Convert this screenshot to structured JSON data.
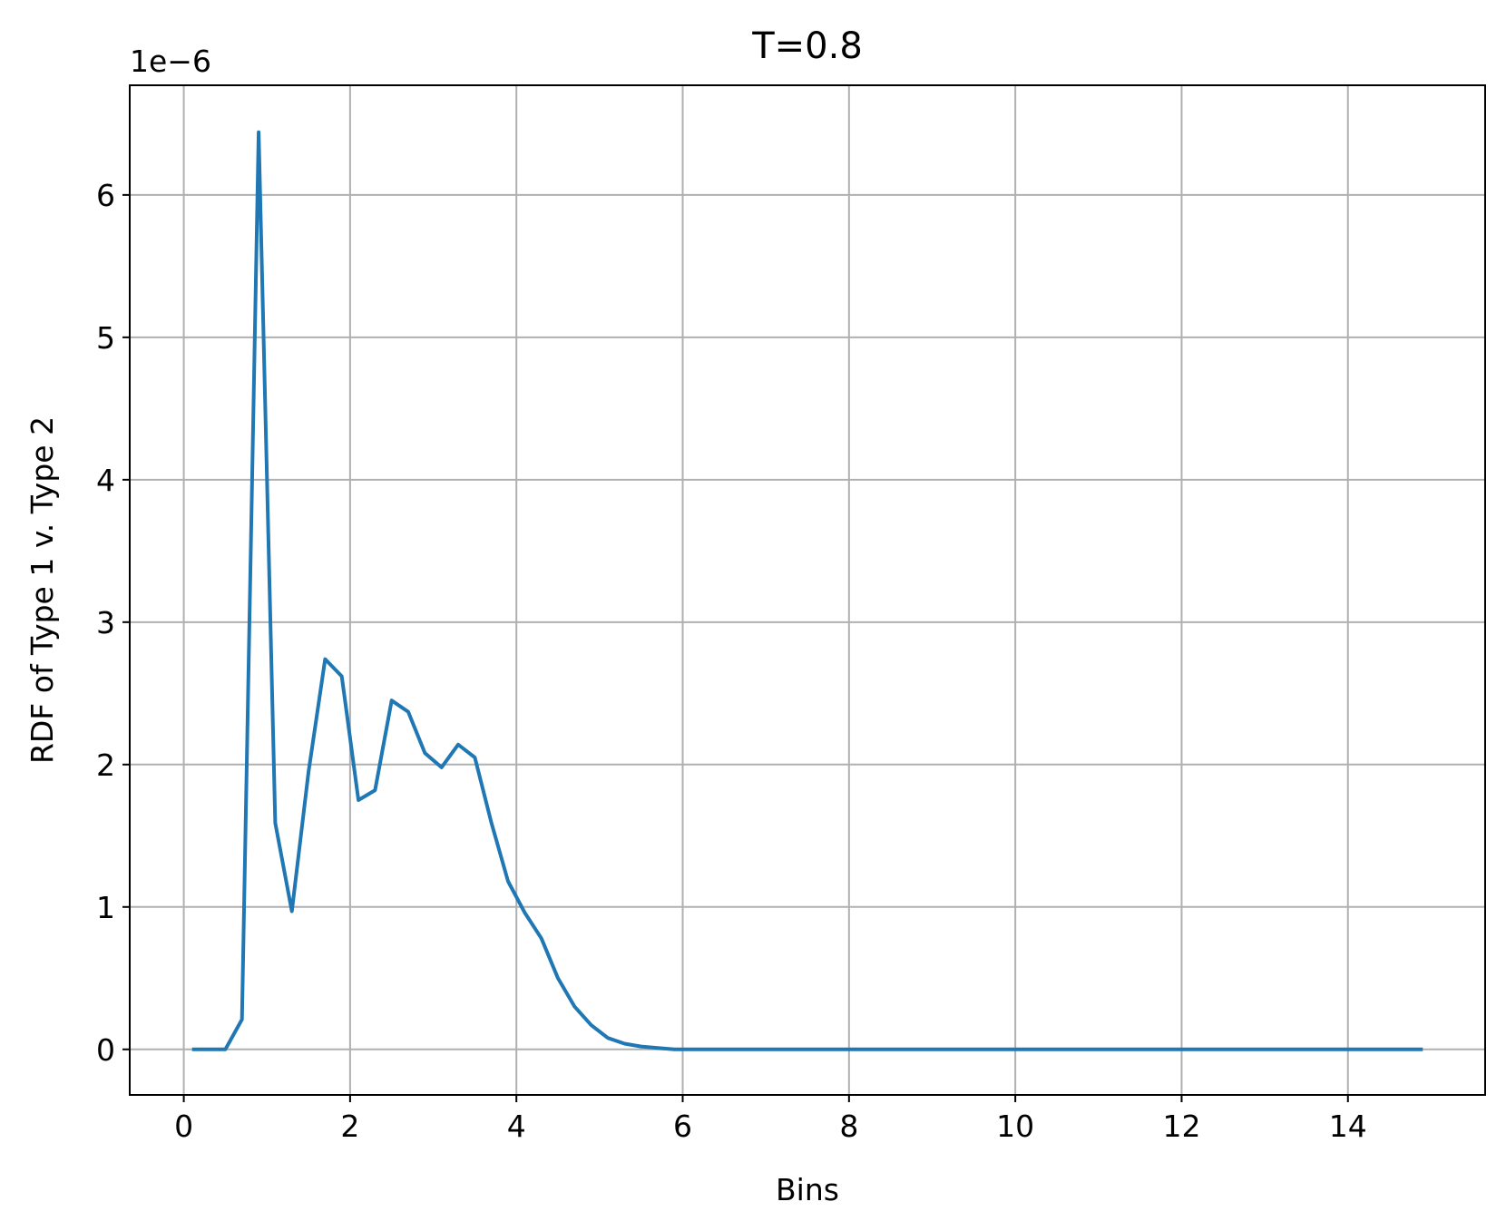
{
  "chart_data": {
    "type": "line",
    "title": "T=0.8",
    "xlabel": "Bins",
    "ylabel": "RDF of Type 1 v. Type 2",
    "offset_text": "1e−6",
    "y_scale_multiplier": 1e-06,
    "xlim": [
      -0.65,
      15.65
    ],
    "ylim": [
      -0.32,
      6.77
    ],
    "xticks": [
      0,
      2,
      4,
      6,
      8,
      10,
      12,
      14
    ],
    "yticks": [
      0,
      1,
      2,
      3,
      4,
      5,
      6
    ],
    "xtick_labels": [
      "0",
      "2",
      "4",
      "6",
      "8",
      "10",
      "12",
      "14"
    ],
    "ytick_labels": [
      "0",
      "1",
      "2",
      "3",
      "4",
      "5",
      "6"
    ],
    "grid": true,
    "series": [
      {
        "color": "#1f77b4",
        "x": [
          0.1,
          0.3,
          0.5,
          0.7,
          0.9,
          1.1,
          1.3,
          1.5,
          1.7,
          1.9,
          2.1,
          2.3,
          2.5,
          2.7,
          2.9,
          3.1,
          3.3,
          3.5,
          3.7,
          3.9,
          4.1,
          4.3,
          4.5,
          4.7,
          4.9,
          5.1,
          5.3,
          5.5,
          5.7,
          5.9,
          6.1,
          14.9
        ],
        "y": [
          0.0,
          0.0,
          0.0,
          0.21,
          6.44,
          1.59,
          0.97,
          1.95,
          2.74,
          2.62,
          1.75,
          1.82,
          2.45,
          2.37,
          2.08,
          1.98,
          2.14,
          2.05,
          1.59,
          1.18,
          0.96,
          0.78,
          0.5,
          0.3,
          0.17,
          0.08,
          0.04,
          0.02,
          0.01,
          0.0,
          0.0,
          0.0
        ]
      }
    ]
  }
}
